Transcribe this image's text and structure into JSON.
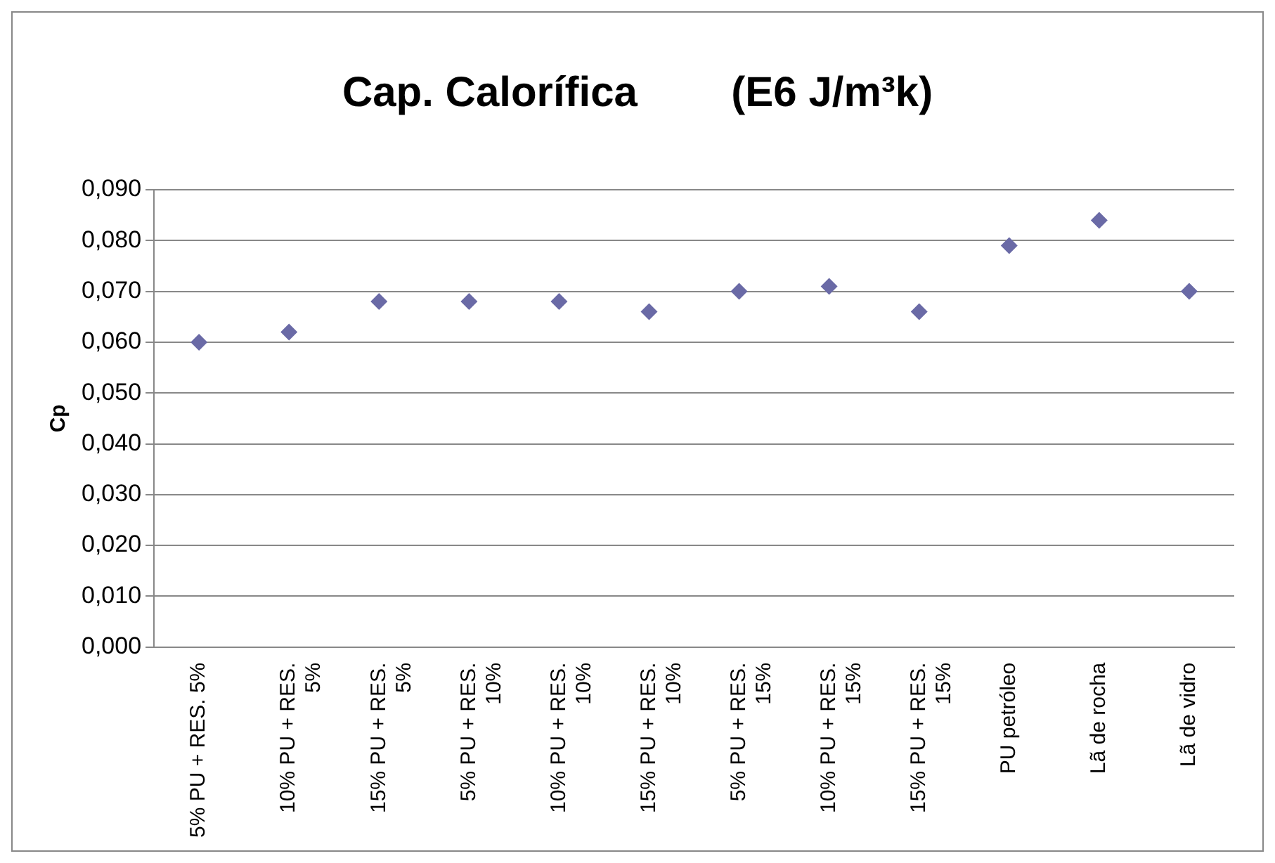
{
  "chart_data": {
    "type": "scatter",
    "title": "Cap. Calorífica        (E6 J/m³k)",
    "ylabel": "Cp",
    "categories": [
      "5% PU + RES. 5%",
      "10% PU + RES. 5%",
      "15% PU + RES. 5%",
      "5% PU + RES. 10%",
      "10% PU + RES. 10%",
      "15% PU + RES. 10%",
      "5% PU + RES. 15%",
      "10% PU + RES. 15%",
      "15% PU + RES. 15%",
      "PU petróleo",
      "Lã de rocha",
      "Lã de vidro"
    ],
    "values": [
      0.06,
      0.062,
      0.068,
      0.068,
      0.068,
      0.066,
      0.07,
      0.071,
      0.066,
      0.079,
      0.084,
      0.07
    ],
    "color": "#6a6aa6",
    "marker": "diamond",
    "grid": "y",
    "legend": false,
    "ylim": [
      0,
      0.09
    ],
    "yticks": [
      {
        "value": 0,
        "label": "0,000"
      },
      {
        "value": 0.01,
        "label": "0,010"
      },
      {
        "value": 0.02,
        "label": "0,020"
      },
      {
        "value": 0.03,
        "label": "0,030"
      },
      {
        "value": 0.04,
        "label": "0,040"
      },
      {
        "value": 0.05,
        "label": "0,050"
      },
      {
        "value": 0.06,
        "label": "0,060"
      },
      {
        "value": 0.07,
        "label": "0,070"
      },
      {
        "value": 0.08,
        "label": "0,080"
      },
      {
        "value": 0.09,
        "label": "0,090"
      }
    ]
  }
}
